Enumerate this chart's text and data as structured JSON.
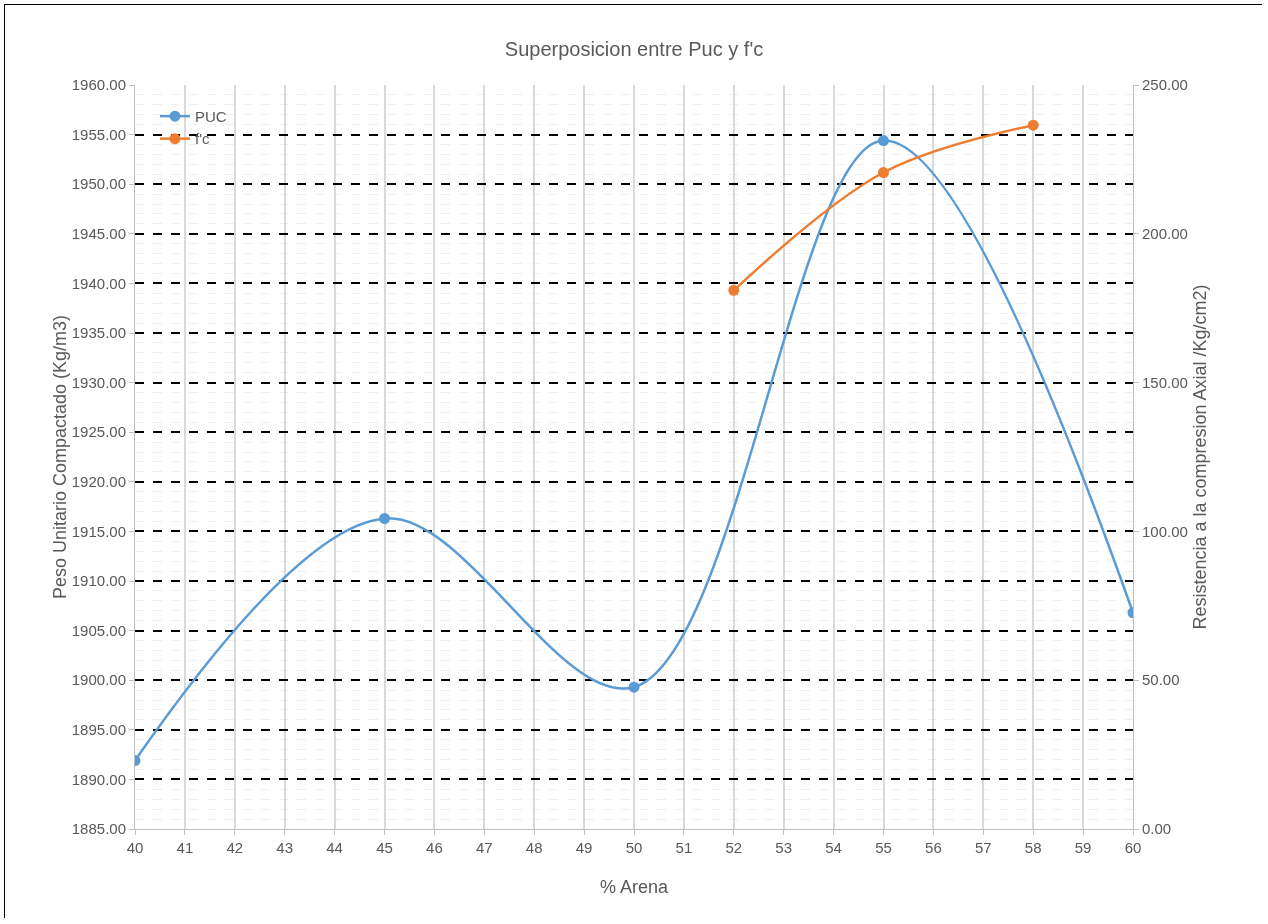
{
  "chart_data": {
    "type": "line",
    "title": "Superposicion entre Puc y f'c",
    "xlabel": "% Arena",
    "ylabel": "Peso Unitario Compactado (Kg/m3)",
    "y2label": "Resistencia a la compresion Axial /Kg/cm2)",
    "series": [
      {
        "name": "PUC",
        "color": "#5b9bd5",
        "x": [
          40,
          45,
          50,
          55,
          60
        ],
        "values": [
          1891.9,
          1916.3,
          1899.3,
          1954.4,
          1906.8
        ]
      },
      {
        "name": "f'c",
        "color": "#ed7d31",
        "axis": "y2",
        "x": [
          52,
          55,
          58
        ],
        "values": [
          181,
          220.6,
          236.5
        ]
      }
    ],
    "xlim": [
      40,
      60
    ],
    "xticks": [
      40,
      41,
      42,
      43,
      44,
      45,
      46,
      47,
      48,
      49,
      50,
      51,
      52,
      53,
      54,
      55,
      56,
      57,
      58,
      59,
      60
    ],
    "ylim": [
      1885,
      1960
    ],
    "yticks": [
      {
        "value": 1885,
        "label": "1885.00"
      },
      {
        "value": 1890,
        "label": "1890.00"
      },
      {
        "value": 1895,
        "label": "1895.00"
      },
      {
        "value": 1900,
        "label": "1900.00"
      },
      {
        "value": 1905,
        "label": "1905.00"
      },
      {
        "value": 1910,
        "label": "1910.00"
      },
      {
        "value": 1915,
        "label": "1915.00"
      },
      {
        "value": 1920,
        "label": "1920.00"
      },
      {
        "value": 1925,
        "label": "1925.00"
      },
      {
        "value": 1930,
        "label": "1930.00"
      },
      {
        "value": 1935,
        "label": "1935.00"
      },
      {
        "value": 1940,
        "label": "1940.00"
      },
      {
        "value": 1945,
        "label": "1945.00"
      },
      {
        "value": 1950,
        "label": "1950.00"
      },
      {
        "value": 1955,
        "label": "1955.00"
      },
      {
        "value": 1960,
        "label": "1960.00"
      }
    ],
    "y2lim": [
      0,
      250
    ],
    "y2ticks": [
      {
        "value": 0,
        "label": "0.00"
      },
      {
        "value": 50,
        "label": "50.00"
      },
      {
        "value": 100,
        "label": "100.00"
      },
      {
        "value": 150,
        "label": "150.00"
      },
      {
        "value": 200,
        "label": "200.00"
      },
      {
        "value": 250,
        "label": "250.00"
      }
    ],
    "grid": true,
    "legend": "top left",
    "marker": "circle",
    "line_style": "solid"
  }
}
